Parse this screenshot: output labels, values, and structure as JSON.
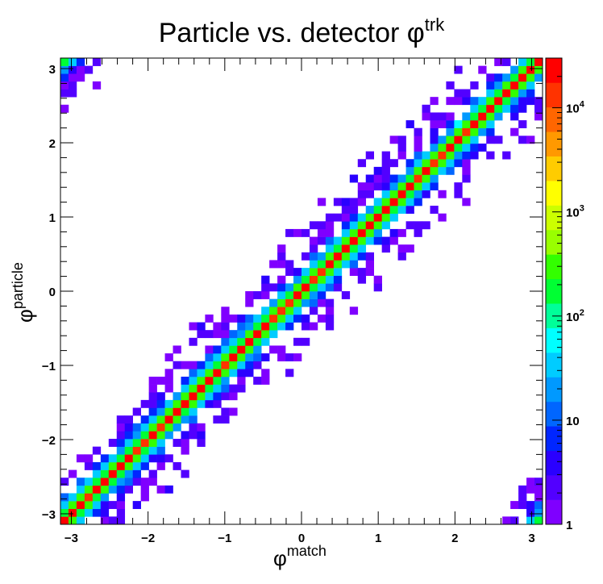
{
  "chart_data": {
    "type": "heatmap",
    "title": {
      "main": "Particle vs. detector φ",
      "sup": "trk"
    },
    "xlabel": {
      "main": "φ",
      "sup": "match"
    },
    "ylabel": {
      "main": "φ",
      "sup": "particle"
    },
    "xlim": [
      -3.1416,
      3.1416
    ],
    "ylim": [
      -3.1416,
      3.1416
    ],
    "x_ticks": [
      {
        "value": -3,
        "label": "−3"
      },
      {
        "value": -2,
        "label": "−2"
      },
      {
        "value": -1,
        "label": "−1"
      },
      {
        "value": 0,
        "label": "0"
      },
      {
        "value": 1,
        "label": "1"
      },
      {
        "value": 2,
        "label": "2"
      },
      {
        "value": 3,
        "label": "3"
      }
    ],
    "y_ticks": [
      {
        "value": -3,
        "label": "−3"
      },
      {
        "value": -2,
        "label": "−2"
      },
      {
        "value": -1,
        "label": "−1"
      },
      {
        "value": 0,
        "label": "0"
      },
      {
        "value": 1,
        "label": "1"
      },
      {
        "value": 2,
        "label": "2"
      },
      {
        "value": 3,
        "label": "3"
      }
    ],
    "bins": {
      "nx": 60,
      "ny": 60
    },
    "z_scale": "log",
    "zlim": [
      1,
      30000
    ],
    "colorbar_ticks": [
      {
        "value": 1,
        "base": "1",
        "exp": ""
      },
      {
        "value": 10,
        "base": "10",
        "exp": ""
      },
      {
        "value": 100,
        "base": "10",
        "exp": "2"
      },
      {
        "value": 1000,
        "base": "10",
        "exp": "3"
      },
      {
        "value": 10000,
        "base": "10",
        "exp": "4"
      }
    ],
    "palette": [
      "#7f00ff",
      "#5200ff",
      "#2a00ff",
      "#0026ff",
      "#0066ff",
      "#0099ff",
      "#00ccff",
      "#00ffff",
      "#00ff99",
      "#00ff33",
      "#33ff00",
      "#99ff00",
      "#ccff00",
      "#ffff00",
      "#ffcc00",
      "#ff9900",
      "#ff6600",
      "#ff3300",
      "#ff0000"
    ],
    "distribution": {
      "description_free": true,
      "diagonal_peak_count": 22000,
      "off_diagonal_falloff": [
        22000,
        260,
        30,
        7,
        2.5,
        1.5
      ],
      "wraparound_corners": true
    },
    "grid": false
  }
}
